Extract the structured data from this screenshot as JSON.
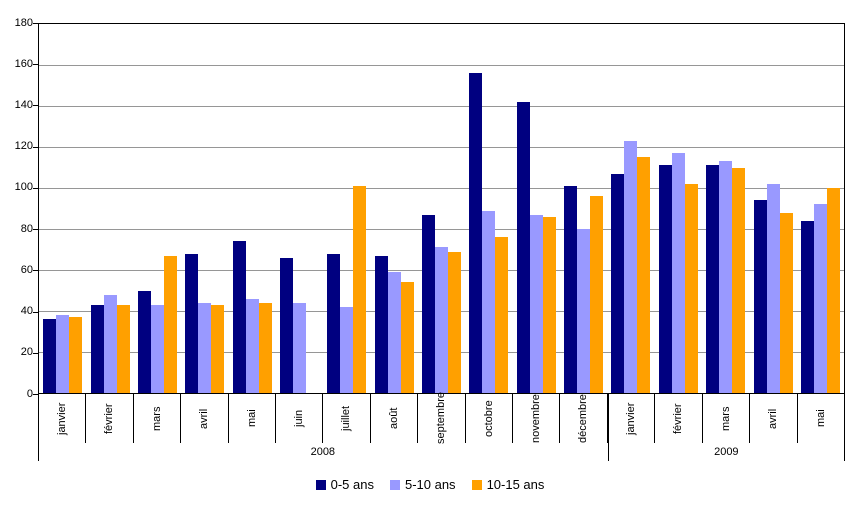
{
  "chart_data": {
    "type": "bar",
    "title": "",
    "grid": true,
    "gridline_color": "#969696",
    "plot_border_color": "#000000",
    "background": "#FFFFFF",
    "y_axis": {
      "min": 0,
      "max": 180,
      "step": 20
    },
    "categories": [
      "janvier",
      "février",
      "mars",
      "avril",
      "mai",
      "juin",
      "juillet",
      "août",
      "septembre",
      "octobre",
      "novembre",
      "décembre",
      "janvier",
      "février",
      "mars",
      "avril",
      "mai"
    ],
    "year_groups": [
      {
        "label": "2008",
        "span": 12
      },
      {
        "label": "2009",
        "span": 5
      }
    ],
    "series": [
      {
        "name": "0-5 ans",
        "color": "#000080",
        "values": [
          36,
          43,
          50,
          68,
          74,
          66,
          68,
          67,
          87,
          156,
          142,
          101,
          107,
          111,
          111,
          94,
          84
        ]
      },
      {
        "name": "5-10 ans",
        "color": "#9999FF",
        "values": [
          38,
          48,
          43,
          44,
          46,
          44,
          42,
          59,
          71,
          89,
          87,
          80,
          123,
          117,
          113,
          102,
          92
        ]
      },
      {
        "name": "10-15 ans",
        "color": "#FFA000",
        "values": [
          37,
          43,
          67,
          43,
          44,
          0,
          101,
          54,
          69,
          76,
          86,
          96,
          115,
          102,
          110,
          88,
          100
        ]
      }
    ],
    "legend": {
      "position": "bottom"
    }
  }
}
